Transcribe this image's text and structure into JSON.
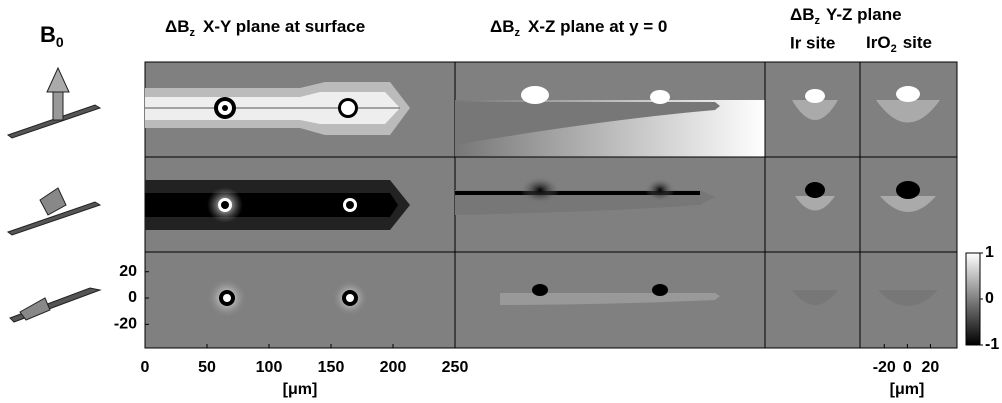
{
  "b0": {
    "main": "B",
    "sub": "0"
  },
  "headers": [
    {
      "prefix": "ΔB",
      "sub": "z",
      "text": "X-Y plane at surface"
    },
    {
      "prefix": "ΔB",
      "sub": "z",
      "text": "X-Z plane at y = 0"
    },
    {
      "prefix": "ΔB",
      "sub": "z",
      "text": "Y-Z plane"
    }
  ],
  "yz_columns": [
    {
      "main": "Ir site"
    },
    {
      "main": "IrO",
      "sub": "2",
      "rest": "site"
    }
  ],
  "xy_axis": {
    "xlim": [
      0,
      250
    ],
    "xticks": [
      0,
      50,
      100,
      150,
      200,
      250
    ],
    "ylim": [
      -38,
      35
    ],
    "yticks": [
      20,
      0,
      -20
    ],
    "xlabel": "[μm]"
  },
  "yz_axis": {
    "xlim": [
      -41,
      43
    ],
    "xticks": [
      -20,
      0,
      20
    ],
    "xlabel": "[μm]"
  },
  "colorbar": {
    "lim": [
      -1,
      1
    ],
    "ticks": [
      1,
      0,
      -1
    ]
  }
}
